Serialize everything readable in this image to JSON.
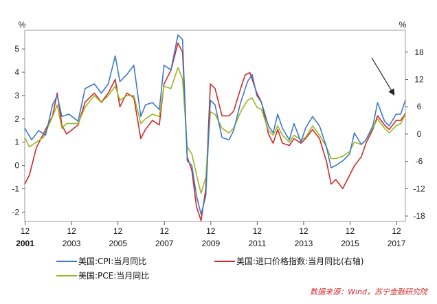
{
  "chart_data": {
    "type": "line",
    "left_axis": {
      "unit": "%",
      "ticks": [
        -2,
        -1,
        0,
        1,
        2,
        3,
        4,
        5
      ],
      "range": [
        -2.4,
        5.8
      ]
    },
    "right_axis": {
      "unit": "%",
      "ticks": [
        -18,
        -12,
        -6,
        0,
        6,
        12,
        18
      ],
      "range": [
        -19.2,
        22.8
      ]
    },
    "x_ticks": [
      {
        "month": "12",
        "year": "2001",
        "bold": true
      },
      {
        "month": "12",
        "year": "2003",
        "bold": false
      },
      {
        "month": "12",
        "year": "2005",
        "bold": false
      },
      {
        "month": "12",
        "year": "2007",
        "bold": false
      },
      {
        "month": "12",
        "year": "2009",
        "bold": false
      },
      {
        "month": "12",
        "year": "2011",
        "bold": false
      },
      {
        "month": "12",
        "year": "2013",
        "bold": false
      },
      {
        "month": "12",
        "year": "2015",
        "bold": false
      },
      {
        "month": "12",
        "year": "2017",
        "bold": false
      }
    ],
    "x_range": [
      2001.9,
      2018.3
    ],
    "series": [
      {
        "name": "美国:CPI:当月同比",
        "axis": "left",
        "color": "#3c78c8",
        "points": [
          [
            2001.9,
            1.6
          ],
          [
            2002.2,
            1.1
          ],
          [
            2002.5,
            1.5
          ],
          [
            2002.8,
            1.3
          ],
          [
            2003.1,
            2.6
          ],
          [
            2003.3,
            3.0
          ],
          [
            2003.5,
            2.1
          ],
          [
            2003.8,
            2.2
          ],
          [
            2004.2,
            1.9
          ],
          [
            2004.5,
            3.3
          ],
          [
            2004.9,
            3.5
          ],
          [
            2005.2,
            3.1
          ],
          [
            2005.5,
            3.5
          ],
          [
            2005.8,
            4.7
          ],
          [
            2006.0,
            3.6
          ],
          [
            2006.3,
            3.9
          ],
          [
            2006.6,
            4.3
          ],
          [
            2006.9,
            2.1
          ],
          [
            2007.1,
            2.6
          ],
          [
            2007.4,
            2.7
          ],
          [
            2007.7,
            2.4
          ],
          [
            2007.9,
            4.3
          ],
          [
            2008.2,
            4.1
          ],
          [
            2008.5,
            5.6
          ],
          [
            2008.7,
            5.4
          ],
          [
            2008.9,
            0.2
          ],
          [
            2009.1,
            0.0
          ],
          [
            2009.3,
            -1.3
          ],
          [
            2009.5,
            -2.1
          ],
          [
            2009.7,
            -1.3
          ],
          [
            2009.9,
            2.8
          ],
          [
            2010.1,
            2.6
          ],
          [
            2010.4,
            1.2
          ],
          [
            2010.7,
            1.1
          ],
          [
            2010.9,
            1.5
          ],
          [
            2011.2,
            2.7
          ],
          [
            2011.5,
            3.6
          ],
          [
            2011.7,
            3.9
          ],
          [
            2011.9,
            3.0
          ],
          [
            2012.1,
            2.7
          ],
          [
            2012.4,
            1.7
          ],
          [
            2012.6,
            1.4
          ],
          [
            2012.8,
            2.2
          ],
          [
            2013.0,
            1.6
          ],
          [
            2013.3,
            1.1
          ],
          [
            2013.5,
            1.8
          ],
          [
            2013.8,
            1.0
          ],
          [
            2014.0,
            1.6
          ],
          [
            2014.3,
            2.1
          ],
          [
            2014.6,
            1.7
          ],
          [
            2014.9,
            0.8
          ],
          [
            2015.1,
            -0.1
          ],
          [
            2015.3,
            0.0
          ],
          [
            2015.6,
            0.2
          ],
          [
            2015.9,
            0.5
          ],
          [
            2016.1,
            1.4
          ],
          [
            2016.4,
            0.9
          ],
          [
            2016.6,
            1.1
          ],
          [
            2016.9,
            1.7
          ],
          [
            2017.1,
            2.7
          ],
          [
            2017.4,
            1.9
          ],
          [
            2017.6,
            1.7
          ],
          [
            2017.9,
            2.2
          ],
          [
            2018.1,
            2.2
          ],
          [
            2018.3,
            2.8
          ]
        ]
      },
      {
        "name": "美国:进口价格指数:当月同比(右轴)",
        "axis": "right",
        "color": "#d02828",
        "points": [
          [
            2001.9,
            -11.0
          ],
          [
            2002.1,
            -9.0
          ],
          [
            2002.4,
            -3.0
          ],
          [
            2002.7,
            0.0
          ],
          [
            2003.1,
            4.0
          ],
          [
            2003.3,
            9.0
          ],
          [
            2003.5,
            2.0
          ],
          [
            2003.7,
            0.0
          ],
          [
            2004.2,
            2.0
          ],
          [
            2004.5,
            7.0
          ],
          [
            2004.9,
            9.0
          ],
          [
            2005.2,
            7.0
          ],
          [
            2005.5,
            9.0
          ],
          [
            2005.8,
            12.0
          ],
          [
            2006.0,
            6.0
          ],
          [
            2006.3,
            9.0
          ],
          [
            2006.6,
            8.0
          ],
          [
            2006.9,
            -1.0
          ],
          [
            2007.1,
            1.0
          ],
          [
            2007.4,
            3.0
          ],
          [
            2007.7,
            2.0
          ],
          [
            2007.9,
            11.0
          ],
          [
            2008.2,
            14.0
          ],
          [
            2008.5,
            20.0
          ],
          [
            2008.7,
            18.0
          ],
          [
            2008.9,
            -5.0
          ],
          [
            2009.1,
            -8.0
          ],
          [
            2009.3,
            -16.0
          ],
          [
            2009.5,
            -19.0
          ],
          [
            2009.7,
            -12.0
          ],
          [
            2009.9,
            11.0
          ],
          [
            2010.1,
            10.0
          ],
          [
            2010.4,
            4.0
          ],
          [
            2010.7,
            4.0
          ],
          [
            2010.9,
            5.0
          ],
          [
            2011.2,
            10.0
          ],
          [
            2011.4,
            13.0
          ],
          [
            2011.6,
            13.5
          ],
          [
            2011.9,
            9.0
          ],
          [
            2012.1,
            7.0
          ],
          [
            2012.4,
            0.0
          ],
          [
            2012.6,
            -2.0
          ],
          [
            2012.8,
            1.0
          ],
          [
            2013.0,
            -2.0
          ],
          [
            2013.3,
            -2.5
          ],
          [
            2013.5,
            -1.0
          ],
          [
            2013.8,
            -2.0
          ],
          [
            2014.0,
            -1.0
          ],
          [
            2014.3,
            1.0
          ],
          [
            2014.6,
            -1.0
          ],
          [
            2014.9,
            -6.0
          ],
          [
            2015.1,
            -11.0
          ],
          [
            2015.3,
            -10.0
          ],
          [
            2015.6,
            -12.0
          ],
          [
            2015.9,
            -9.0
          ],
          [
            2016.1,
            -7.0
          ],
          [
            2016.4,
            -5.0
          ],
          [
            2016.6,
            -2.0
          ],
          [
            2016.9,
            1.0
          ],
          [
            2017.1,
            4.0
          ],
          [
            2017.4,
            2.0
          ],
          [
            2017.6,
            1.0
          ],
          [
            2017.9,
            3.0
          ],
          [
            2018.1,
            3.0
          ],
          [
            2018.3,
            4.5
          ]
        ]
      },
      {
        "name": "美国:PCE:当月同比",
        "axis": "left",
        "color": "#9ab622",
        "points": [
          [
            2001.9,
            1.2
          ],
          [
            2002.1,
            0.8
          ],
          [
            2002.4,
            1.0
          ],
          [
            2002.7,
            1.2
          ],
          [
            2003.1,
            2.1
          ],
          [
            2003.3,
            2.6
          ],
          [
            2003.5,
            1.6
          ],
          [
            2003.7,
            1.8
          ],
          [
            2004.2,
            1.8
          ],
          [
            2004.5,
            2.5
          ],
          [
            2004.9,
            3.0
          ],
          [
            2005.2,
            2.7
          ],
          [
            2005.5,
            3.0
          ],
          [
            2005.8,
            3.4
          ],
          [
            2006.0,
            2.8
          ],
          [
            2006.3,
            3.0
          ],
          [
            2006.6,
            3.0
          ],
          [
            2006.9,
            1.8
          ],
          [
            2007.1,
            2.0
          ],
          [
            2007.4,
            2.2
          ],
          [
            2007.7,
            2.1
          ],
          [
            2007.9,
            3.4
          ],
          [
            2008.2,
            3.3
          ],
          [
            2008.5,
            4.2
          ],
          [
            2008.7,
            3.7
          ],
          [
            2008.9,
            0.8
          ],
          [
            2009.1,
            0.5
          ],
          [
            2009.3,
            -0.4
          ],
          [
            2009.5,
            -1.2
          ],
          [
            2009.7,
            -0.5
          ],
          [
            2009.9,
            2.3
          ],
          [
            2010.1,
            2.2
          ],
          [
            2010.4,
            1.6
          ],
          [
            2010.7,
            1.4
          ],
          [
            2010.9,
            1.6
          ],
          [
            2011.2,
            2.3
          ],
          [
            2011.5,
            2.8
          ],
          [
            2011.7,
            2.9
          ],
          [
            2011.9,
            2.5
          ],
          [
            2012.1,
            2.4
          ],
          [
            2012.4,
            1.5
          ],
          [
            2012.6,
            1.3
          ],
          [
            2012.8,
            1.7
          ],
          [
            2013.0,
            1.3
          ],
          [
            2013.3,
            1.0
          ],
          [
            2013.5,
            1.3
          ],
          [
            2013.8,
            1.1
          ],
          [
            2014.0,
            1.2
          ],
          [
            2014.3,
            1.7
          ],
          [
            2014.6,
            1.3
          ],
          [
            2014.9,
            0.8
          ],
          [
            2015.1,
            0.3
          ],
          [
            2015.3,
            0.3
          ],
          [
            2015.6,
            0.4
          ],
          [
            2015.9,
            0.6
          ],
          [
            2016.1,
            1.0
          ],
          [
            2016.4,
            0.9
          ],
          [
            2016.6,
            1.1
          ],
          [
            2016.9,
            1.6
          ],
          [
            2017.1,
            2.0
          ],
          [
            2017.4,
            1.6
          ],
          [
            2017.6,
            1.4
          ],
          [
            2017.9,
            1.7
          ],
          [
            2018.1,
            1.8
          ],
          [
            2018.3,
            2.2
          ]
        ]
      }
    ],
    "annotation": "arrow pointing to latest rise"
  },
  "legend": {
    "cpi": "美国:CPI:当月同比",
    "import": "美国:进口价格指数:当月同比(右轴)",
    "pce": "美国:PCE:当月同比"
  },
  "source": "数据来源：Wind，苏宁金融研究院"
}
